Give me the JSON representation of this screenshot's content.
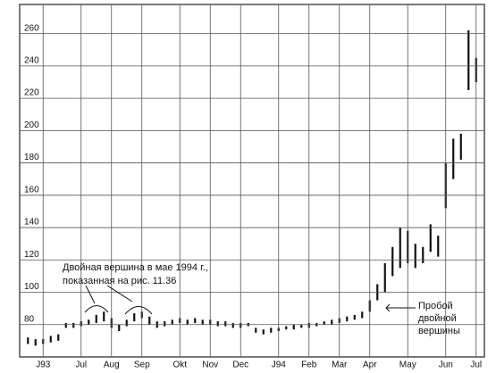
{
  "chart_data": {
    "type": "range_bar",
    "categories": [
      null,
      null,
      "J93",
      null,
      null,
      null,
      null,
      "Jul",
      null,
      null,
      null,
      "Aug",
      null,
      null,
      null,
      "Sep",
      null,
      null,
      null,
      null,
      "Okt",
      null,
      null,
      null,
      "Nov",
      null,
      null,
      null,
      "Dec",
      null,
      null,
      null,
      null,
      "J94",
      null,
      null,
      null,
      "Feb",
      null,
      null,
      null,
      "Mar",
      null,
      null,
      null,
      "Apr",
      null,
      null,
      null,
      null,
      "May",
      null,
      null,
      null,
      null,
      "Jun",
      null,
      null,
      null,
      "Jul"
    ],
    "high": [
      72,
      71,
      71,
      73,
      74,
      81,
      81,
      82,
      83,
      86,
      88,
      84,
      80,
      83,
      87,
      88,
      85,
      82,
      82,
      83,
      84,
      83,
      84,
      83,
      83,
      82,
      82,
      81,
      81,
      81,
      78,
      77,
      78,
      78,
      79,
      80,
      80,
      81,
      81,
      82,
      83,
      84,
      85,
      86,
      88,
      95,
      105,
      118,
      128,
      140,
      138,
      130,
      128,
      142,
      135,
      180,
      195,
      198,
      262,
      245
    ],
    "low": [
      68,
      67,
      68,
      69,
      70,
      78,
      78,
      79,
      80,
      81,
      82,
      78,
      76,
      79,
      82,
      84,
      80,
      78,
      79,
      80,
      81,
      80,
      81,
      80,
      80,
      79,
      79,
      78,
      78,
      79,
      75,
      74,
      75,
      76,
      77,
      77,
      78,
      78,
      79,
      80,
      80,
      81,
      82,
      83,
      84,
      88,
      95,
      100,
      110,
      115,
      118,
      115,
      118,
      125,
      122,
      152,
      170,
      182,
      225,
      230
    ],
    "color": "#111111",
    "ylim": [
      60,
      278
    ],
    "yticks": [
      80,
      100,
      120,
      140,
      160,
      180,
      200,
      220,
      240,
      260
    ],
    "grid": true,
    "annotations": [
      "Двойная вершина в мае 1994 г.,",
      "показанная на рис. 11.36",
      "Пробой",
      "двойной",
      "вершины"
    ]
  }
}
